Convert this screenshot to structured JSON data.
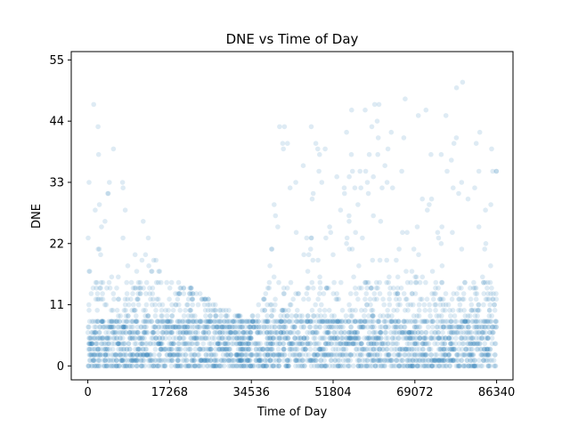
{
  "chart_data": {
    "type": "scatter",
    "title": "DNE vs Time of Day",
    "xlabel": "Time of Day",
    "ylabel": "DNE",
    "xlim": [
      -3500,
      89800
    ],
    "ylim": [
      -2.5,
      56.5
    ],
    "xticks": [
      0,
      17268,
      34536,
      51804,
      69072,
      86340
    ],
    "yticks": [
      0,
      11,
      22,
      33,
      44,
      55
    ],
    "grid": false,
    "marker_color": "#1f77b4",
    "marker_alpha": 0.15,
    "series": [
      {
        "profile": [
          {
            "x": 0,
            "ymax": 41
          },
          {
            "x": 2000,
            "ymax": 54
          },
          {
            "x": 4500,
            "ymax": 47
          },
          {
            "x": 6000,
            "ymax": 35
          },
          {
            "x": 10000,
            "ymax": 31
          },
          {
            "x": 13500,
            "ymax": 21
          },
          {
            "x": 17268,
            "ymax": 16
          },
          {
            "x": 22000,
            "ymax": 14
          },
          {
            "x": 26000,
            "ymax": 12
          },
          {
            "x": 30000,
            "ymax": 10
          },
          {
            "x": 34536,
            "ymax": 9
          },
          {
            "x": 38000,
            "ymax": 14
          },
          {
            "x": 40000,
            "ymax": 44
          },
          {
            "x": 43000,
            "ymax": 46
          },
          {
            "x": 46000,
            "ymax": 42
          },
          {
            "x": 48000,
            "ymax": 45
          },
          {
            "x": 51804,
            "ymax": 36
          },
          {
            "x": 55000,
            "ymax": 44
          },
          {
            "x": 58000,
            "ymax": 53
          },
          {
            "x": 61000,
            "ymax": 48
          },
          {
            "x": 63000,
            "ymax": 44
          },
          {
            "x": 65000,
            "ymax": 42
          },
          {
            "x": 67000,
            "ymax": 53
          },
          {
            "x": 69072,
            "ymax": 44
          },
          {
            "x": 71000,
            "ymax": 49
          },
          {
            "x": 73000,
            "ymax": 39
          },
          {
            "x": 76000,
            "ymax": 47
          },
          {
            "x": 79000,
            "ymax": 54
          },
          {
            "x": 82000,
            "ymax": 44
          },
          {
            "x": 84000,
            "ymax": 45
          },
          {
            "x": 86340,
            "ymax": 47
          }
        ]
      }
    ]
  }
}
